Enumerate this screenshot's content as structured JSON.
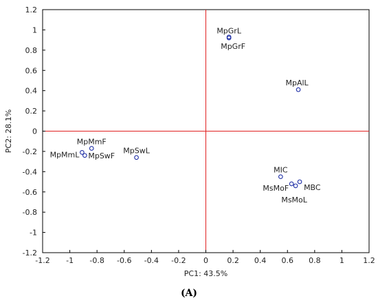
{
  "chart_data": {
    "type": "scatter",
    "xlabel": "PC1: 43.5%",
    "ylabel": "PC2: 28.1%",
    "xlim": [
      -1.2,
      1.2
    ],
    "ylim": [
      -1.2,
      1.2
    ],
    "xticks": [
      "-1.2",
      "-1",
      "-0.8",
      "-0.6",
      "-0.4",
      "-0.2",
      "0",
      "0.2",
      "0.4",
      "0.6",
      "0.8",
      "1",
      "1.2"
    ],
    "yticks": [
      "1.2",
      "1",
      "0.8",
      "0.6",
      "0.4",
      "0.2",
      "0",
      "-0.2",
      "-0.4",
      "-0.6",
      "-0.8",
      "-1",
      "-1.2"
    ],
    "grid": false,
    "reference_lines": {
      "x": 0,
      "y": 0
    },
    "points": [
      {
        "label": "MpGrL",
        "x": 0.17,
        "y": 0.93
      },
      {
        "label": "MpGrF",
        "x": 0.17,
        "y": 0.92
      },
      {
        "label": "MpAlL",
        "x": 0.68,
        "y": 0.41
      },
      {
        "label": "MpMmF",
        "x": -0.84,
        "y": -0.17
      },
      {
        "label": "MpMmL",
        "x": -0.91,
        "y": -0.21
      },
      {
        "label": "MpSwF",
        "x": -0.89,
        "y": -0.24
      },
      {
        "label": "MpSwL",
        "x": -0.51,
        "y": -0.26
      },
      {
        "label": "MIC",
        "x": 0.55,
        "y": -0.45
      },
      {
        "label": "MsMoF",
        "x": 0.63,
        "y": -0.52
      },
      {
        "label": "MsMoL",
        "x": 0.66,
        "y": -0.54
      },
      {
        "label": "MBC",
        "x": 0.69,
        "y": -0.5
      }
    ],
    "colors": {
      "marker": "#1f2fa6",
      "reference_line": "#e02020",
      "axes": "#000000"
    }
  },
  "caption": "(A)"
}
